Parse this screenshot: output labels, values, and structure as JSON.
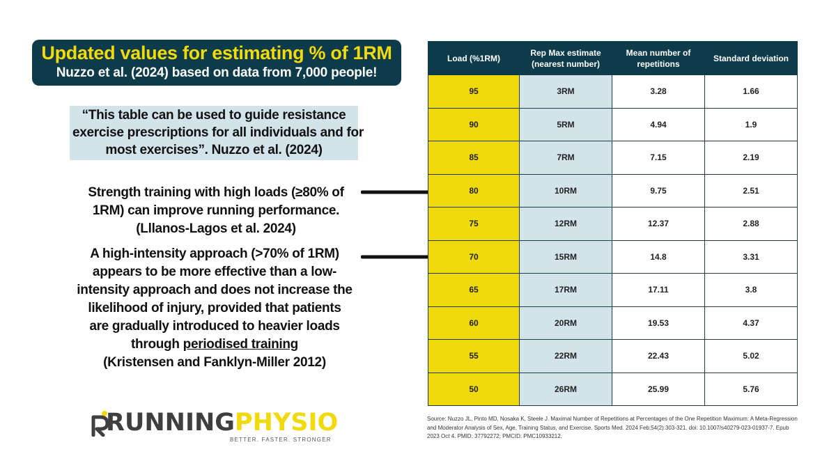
{
  "title": {
    "main": "Updated values for estimating % of 1RM",
    "sub": "Nuzzo et al. (2024) based on data from 7,000 people!"
  },
  "quote": {
    "lines": [
      "“This table can be used to guide resistance",
      "exercise prescriptions for all individuals and for",
      "most exercises”. Nuzzo et al. (2024)"
    ]
  },
  "paragraph1": {
    "lines": [
      "Strength training with high loads (≥80% of",
      "1RM) can improve running performance.",
      "(Lllanos-Lagos et al. 2024)"
    ]
  },
  "paragraph2": {
    "lines": [
      "A high-intensity approach (>70% of 1RM)",
      "appears to be more effective than a low-",
      "intensity approach and does not increase the",
      "likelihood of injury, provided that patients",
      "are gradually introduced to heavier loads"
    ],
    "line6_prefix": "through ",
    "line6_link": "periodised training",
    "citation": "(Kristensen and Fanklyn-Miller 2012)"
  },
  "logo": {
    "running": "RUNNING",
    "physio": "PHYSIO",
    "tagline": "BETTER. FASTER. STRONGER"
  },
  "table": {
    "headers": [
      "Load (%1RM)",
      "Rep Max estimate (nearest number)",
      "Mean number of repetitions",
      "Standard deviation"
    ],
    "rows": [
      [
        "95",
        "3RM",
        "3.28",
        "1.66"
      ],
      [
        "90",
        "5RM",
        "4.94",
        "1.9"
      ],
      [
        "85",
        "7RM",
        "7.15",
        "2.19"
      ],
      [
        "80",
        "10RM",
        "9.75",
        "2.51"
      ],
      [
        "75",
        "12RM",
        "12.37",
        "2.88"
      ],
      [
        "70",
        "15RM",
        "14.8",
        "3.31"
      ],
      [
        "65",
        "17RM",
        "17.11",
        "3.8"
      ],
      [
        "60",
        "20RM",
        "19.53",
        "4.37"
      ],
      [
        "55",
        "22RM",
        "22.43",
        "5.02"
      ],
      [
        "50",
        "26RM",
        "25.99",
        "5.76"
      ]
    ]
  },
  "source": "Source: Nuzzo JL, Pinto MD, Nosaka K, Steele J. Maximal Number of Repetitions at Percentages of the One Repetition Maximum: A Meta-Regression and Moderator Analysis of Sex, Age, Training Status, and Exercise. Sports Med. 2024 Feb;54(2):303-321. doi: 10.1007/s40279-023-01937-7. Epub 2023 Oct 4. PMID: 37792272; PMCID: PMC10933212.",
  "colors": {
    "navy": "#0e3b4a",
    "yellow": "#efd90a",
    "light_blue": "#d3e3ea"
  },
  "icons": [
    "right-arrow-icon",
    "running-figure-icon"
  ]
}
